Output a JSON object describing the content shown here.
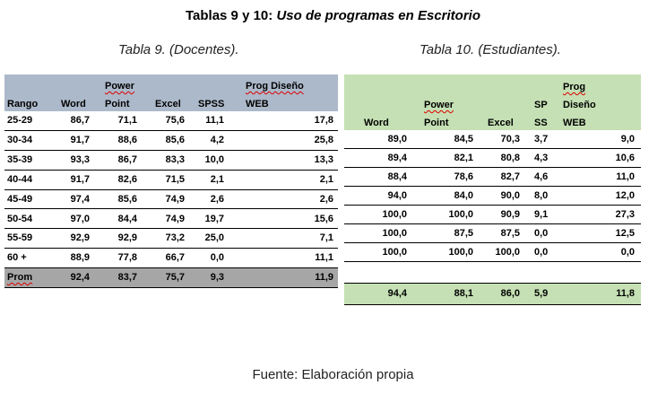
{
  "title": {
    "prefix": "Tablas 9 y 10:",
    "emphasis": "Uso de programas en Escritorio"
  },
  "table9": {
    "caption": "Tabla 9. (Docentes).",
    "headers": [
      [
        "Rango"
      ],
      [
        "Word"
      ],
      [
        "Power",
        "Point"
      ],
      [
        "Excel"
      ],
      [
        "SPSS"
      ],
      [
        "Prog Diseño",
        "WEB"
      ]
    ],
    "rows": [
      [
        "25-29",
        "86,7",
        "71,1",
        "75,6",
        "11,1",
        "17,8"
      ],
      [
        "30-34",
        "91,7",
        "88,6",
        "85,6",
        "4,2",
        "25,8"
      ],
      [
        "35-39",
        "93,3",
        "86,7",
        "83,3",
        "10,0",
        "13,3"
      ],
      [
        "40-44",
        "91,7",
        "82,6",
        "71,5",
        "2,1",
        "2,1"
      ],
      [
        "45-49",
        "97,4",
        "85,6",
        "74,9",
        "2,6",
        "2,6"
      ],
      [
        "50-54",
        "97,0",
        "84,4",
        "74,9",
        "19,7",
        "15,6"
      ],
      [
        "55-59",
        "92,9",
        "92,9",
        "73,2",
        "25,0",
        "7,1"
      ],
      [
        "60 +",
        "88,9",
        "77,8",
        "66,7",
        "0,0",
        "11,1"
      ]
    ],
    "average": [
      "Prom",
      "92,4",
      "83,7",
      "75,7",
      "9,3",
      "11,9"
    ]
  },
  "table10": {
    "caption": "Tabla 10. (Estudiantes).",
    "headers": [
      [
        "Word"
      ],
      [
        "Power",
        "Point"
      ],
      [
        "Excel"
      ],
      [
        "SP",
        "SS"
      ],
      [
        "Prog",
        "Diseño",
        "WEB"
      ]
    ],
    "rows": [
      [
        "89,0",
        "84,5",
        "70,3",
        "3,7",
        "9,0"
      ],
      [
        "89,4",
        "82,1",
        "80,8",
        "4,3",
        "10,6"
      ],
      [
        "88,4",
        "78,6",
        "82,7",
        "4,6",
        "11,0"
      ],
      [
        "94,0",
        "84,0",
        "90,0",
        "8,0",
        "12,0"
      ],
      [
        "100,0",
        "100,0",
        "90,9",
        "9,1",
        "27,3"
      ],
      [
        "100,0",
        "87,5",
        "87,5",
        "0,0",
        "12,5"
      ],
      [
        "100,0",
        "100,0",
        "100,0",
        "0,0",
        "0,0"
      ]
    ],
    "average": [
      "94,4",
      "88,1",
      "86,0",
      "5,9",
      "11,8"
    ]
  },
  "source": "Fuente: Elaboración propia"
}
